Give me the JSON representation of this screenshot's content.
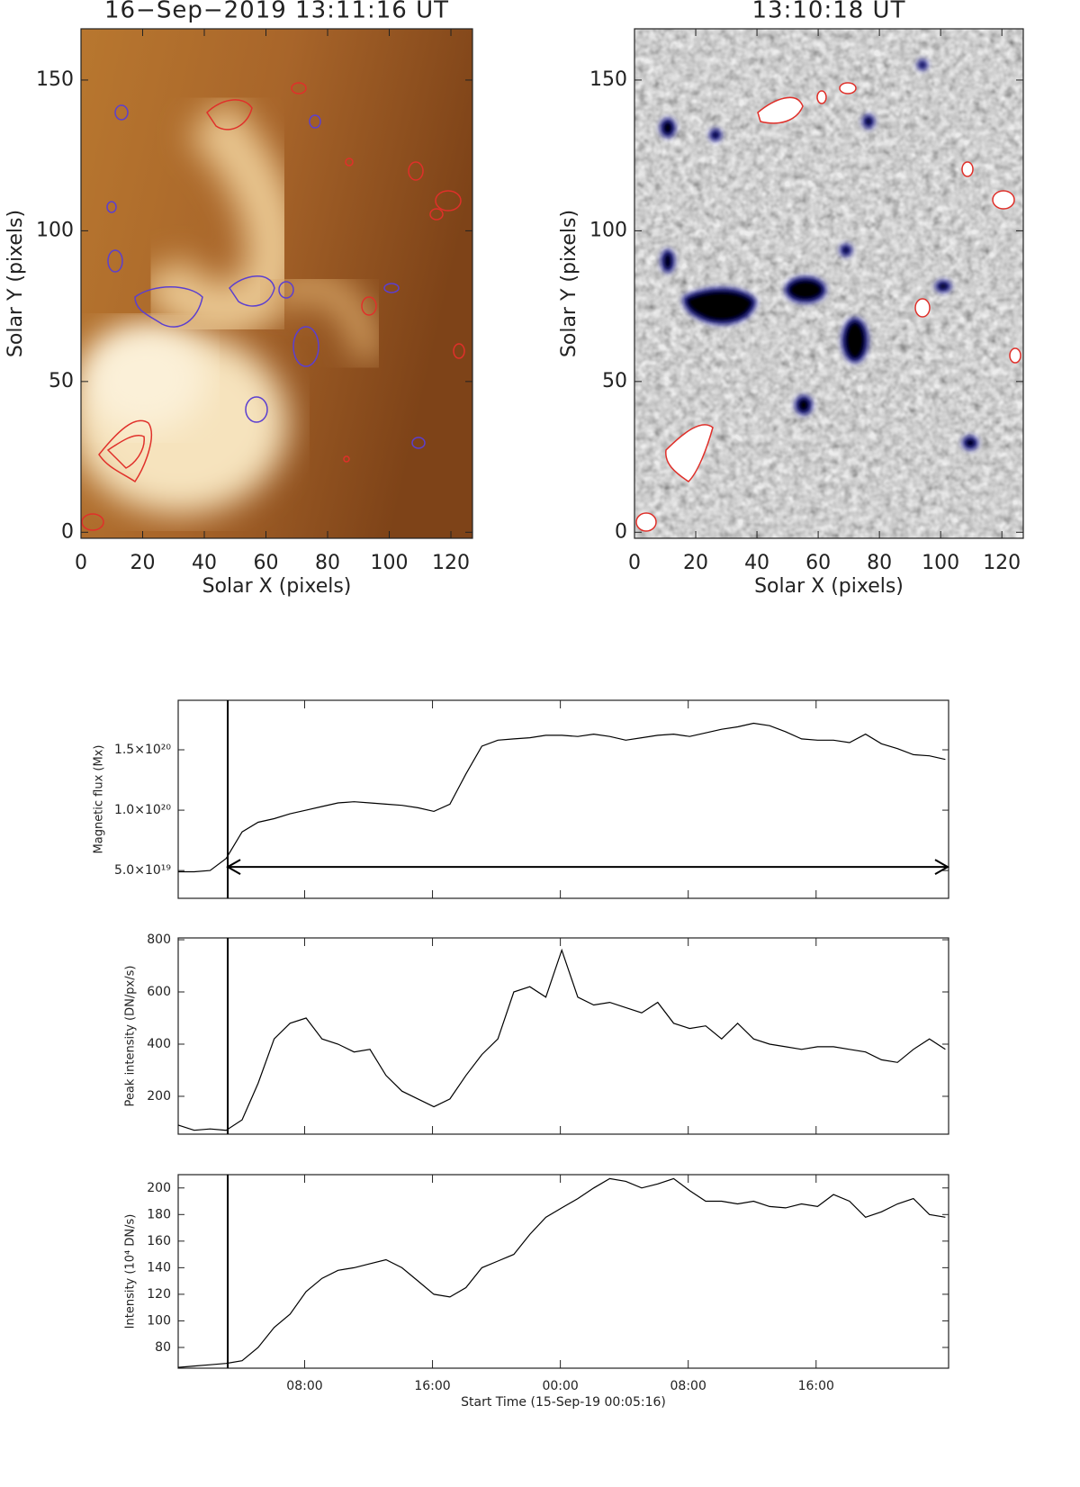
{
  "chart_data": [
    {
      "type": "image",
      "title": "16−Sep−2019 13:11:16 UT",
      "xlabel": "Solar X (pixels)",
      "ylabel": "Solar Y (pixels)",
      "xlim": [
        0,
        127
      ],
      "ylim": [
        -2,
        167
      ],
      "xticks": [
        0,
        20,
        40,
        60,
        80,
        100,
        120
      ],
      "yticks": [
        0,
        50,
        100,
        150
      ]
    },
    {
      "type": "image",
      "title": "13:10:18 UT",
      "xlabel": "Solar X (pixels)",
      "ylabel": "Solar Y (pixels)",
      "xlim": [
        0,
        127
      ],
      "ylim": [
        -2,
        167
      ],
      "xticks": [
        0,
        20,
        40,
        60,
        80,
        100,
        120
      ],
      "yticks": [
        0,
        50,
        100,
        150
      ]
    },
    {
      "type": "line",
      "ylabel": "Magnetic flux (Mx)",
      "color": "#000000",
      "x": [
        0,
        1,
        2,
        3,
        4,
        5,
        6,
        7,
        8,
        9,
        10,
        11,
        12,
        13,
        14,
        15,
        16,
        17,
        18,
        19,
        20,
        21,
        22,
        23,
        24,
        25,
        26,
        27,
        28,
        29,
        30,
        31,
        32,
        33,
        34,
        35,
        36,
        37,
        38,
        39,
        40,
        41,
        42,
        43,
        44,
        45,
        46,
        47,
        48
      ],
      "values": [
        4.9e+19,
        4.9e+19,
        5e+19,
        6e+19,
        8.2e+19,
        9e+19,
        9.3e+19,
        9.7e+19,
        1e+20,
        1.03e+20,
        1.06e+20,
        1.07e+20,
        1.06e+20,
        1.05e+20,
        1.04e+20,
        1.02e+20,
        9.9e+19,
        1.05e+20,
        1.3e+20,
        1.53e+20,
        1.58e+20,
        1.59e+20,
        1.6e+20,
        1.62e+20,
        1.62e+20,
        1.61e+20,
        1.63e+20,
        1.61e+20,
        1.58e+20,
        1.6e+20,
        1.62e+20,
        1.63e+20,
        1.61e+20,
        1.64e+20,
        1.67e+20,
        1.69e+20,
        1.72e+20,
        1.7e+20,
        1.65e+20,
        1.59e+20,
        1.58e+20,
        1.58e+20,
        1.56e+20,
        1.63e+20,
        1.55e+20,
        1.51e+20,
        1.46e+20,
        1.45e+20,
        1.42e+20
      ],
      "xlim": [
        0,
        48.2
      ],
      "ylim": [
        2.7e+19,
        1.91e+20
      ],
      "yticks": [
        {
          "value": 5e+19,
          "label": "5.0×10¹⁹"
        },
        {
          "value": 1e+20,
          "label": "1.0×10²⁰"
        },
        {
          "value": 1.5e+20,
          "label": "1.5×10²⁰"
        }
      ],
      "marker_x": 3.1,
      "arrow_y": 5.3e+19
    },
    {
      "type": "line",
      "ylabel": "Peak intensity (DN/px/s)",
      "color": "#000000",
      "x": [
        0,
        1,
        2,
        3,
        4,
        5,
        6,
        7,
        8,
        9,
        10,
        11,
        12,
        13,
        14,
        15,
        16,
        17,
        18,
        19,
        20,
        21,
        22,
        23,
        24,
        25,
        26,
        27,
        28,
        29,
        30,
        31,
        32,
        33,
        34,
        35,
        36,
        37,
        38,
        39,
        40,
        41,
        42,
        43,
        44,
        45,
        46,
        47,
        48
      ],
      "values": [
        90,
        70,
        75,
        70,
        110,
        250,
        420,
        480,
        500,
        420,
        400,
        370,
        380,
        280,
        220,
        190,
        160,
        190,
        280,
        360,
        420,
        600,
        620,
        580,
        760,
        580,
        550,
        560,
        540,
        520,
        560,
        480,
        460,
        470,
        420,
        480,
        420,
        400,
        390,
        380,
        390,
        390,
        380,
        370,
        340,
        330,
        380,
        420,
        380
      ],
      "xlim": [
        0,
        48.2
      ],
      "ylim": [
        55,
        807
      ],
      "yticks": [
        200,
        400,
        600,
        800
      ],
      "marker_x": 3.1
    },
    {
      "type": "line",
      "ylabel": "Intensity (10⁴ DN/s)",
      "xlabel": "Start Time (15-Sep-19 00:05:16)",
      "color": "#000000",
      "x": [
        0,
        1,
        2,
        3,
        4,
        5,
        6,
        7,
        8,
        9,
        10,
        11,
        12,
        13,
        14,
        15,
        16,
        17,
        18,
        19,
        20,
        21,
        22,
        23,
        24,
        25,
        26,
        27,
        28,
        29,
        30,
        31,
        32,
        33,
        34,
        35,
        36,
        37,
        38,
        39,
        40,
        41,
        42,
        43,
        44,
        45,
        46,
        47,
        48
      ],
      "values": [
        65,
        66,
        67,
        68,
        70,
        80,
        95,
        105,
        122,
        132,
        138,
        140,
        143,
        146,
        140,
        130,
        120,
        118,
        125,
        140,
        145,
        150,
        165,
        178,
        185,
        192,
        200,
        207,
        205,
        200,
        203,
        207,
        198,
        190,
        190,
        188,
        190,
        186,
        185,
        188,
        186,
        195,
        190,
        178,
        182,
        188,
        192,
        180,
        178
      ],
      "xlim": [
        0,
        48.2
      ],
      "ylim": [
        64.4,
        210
      ],
      "yticks": [
        80,
        100,
        120,
        140,
        160,
        180,
        200
      ],
      "xticks": [
        {
          "value": 7.91,
          "label": "08:00"
        },
        {
          "value": 15.91,
          "label": "16:00"
        },
        {
          "value": 23.91,
          "label": "00:00"
        },
        {
          "value": 31.91,
          "label": "08:00"
        },
        {
          "value": 39.91,
          "label": "16:00"
        }
      ],
      "marker_x": 3.1
    }
  ]
}
